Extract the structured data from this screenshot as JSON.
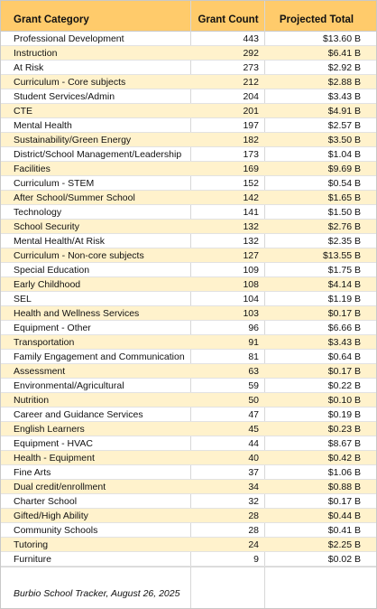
{
  "table": {
    "headers": {
      "category": "Grant Category",
      "count": "Grant Count",
      "total": "Projected Total"
    },
    "rows": [
      {
        "category": "Professional Development",
        "count": "443",
        "total": "$13.60 B"
      },
      {
        "category": "Instruction",
        "count": "292",
        "total": "$6.41 B"
      },
      {
        "category": "At Risk",
        "count": "273",
        "total": "$2.92 B"
      },
      {
        "category": "Curriculum - Core subjects",
        "count": "212",
        "total": "$2.88 B"
      },
      {
        "category": "Student Services/Admin",
        "count": "204",
        "total": "$3.43 B"
      },
      {
        "category": "CTE",
        "count": "201",
        "total": "$4.91 B"
      },
      {
        "category": "Mental Health",
        "count": "197",
        "total": "$2.57 B"
      },
      {
        "category": "Sustainability/Green Energy",
        "count": "182",
        "total": "$3.50 B"
      },
      {
        "category": "District/School Management/Leadership",
        "count": "173",
        "total": "$1.04 B"
      },
      {
        "category": "Facilities",
        "count": "169",
        "total": "$9.69 B"
      },
      {
        "category": "Curriculum - STEM",
        "count": "152",
        "total": "$0.54 B"
      },
      {
        "category": "After School/Summer School",
        "count": "142",
        "total": "$1.65 B"
      },
      {
        "category": "Technology",
        "count": "141",
        "total": "$1.50 B"
      },
      {
        "category": "School Security",
        "count": "132",
        "total": "$2.76 B"
      },
      {
        "category": "Mental Health/At Risk",
        "count": "132",
        "total": "$2.35 B"
      },
      {
        "category": "Curriculum - Non-core subjects",
        "count": "127",
        "total": "$13.55 B"
      },
      {
        "category": "Special Education",
        "count": "109",
        "total": "$1.75 B"
      },
      {
        "category": "Early Childhood",
        "count": "108",
        "total": "$4.14 B"
      },
      {
        "category": "SEL",
        "count": "104",
        "total": "$1.19 B"
      },
      {
        "category": "Health and Wellness Services",
        "count": "103",
        "total": "$0.17 B"
      },
      {
        "category": "Equipment - Other",
        "count": "96",
        "total": "$6.66 B"
      },
      {
        "category": "Transportation",
        "count": "91",
        "total": "$3.43 B"
      },
      {
        "category": "Family Engagement and Communication",
        "count": "81",
        "total": "$0.64 B"
      },
      {
        "category": "Assessment",
        "count": "63",
        "total": "$0.17 B"
      },
      {
        "category": "Environmental/Agricultural",
        "count": "59",
        "total": "$0.22 B"
      },
      {
        "category": "Nutrition",
        "count": "50",
        "total": "$0.10 B"
      },
      {
        "category": "Career and Guidance Services",
        "count": "47",
        "total": "$0.19 B"
      },
      {
        "category": "English Learners",
        "count": "45",
        "total": "$0.23 B"
      },
      {
        "category": "Equipment - HVAC",
        "count": "44",
        "total": "$8.67 B"
      },
      {
        "category": "Health - Equipment",
        "count": "40",
        "total": "$0.42 B"
      },
      {
        "category": "Fine Arts",
        "count": "37",
        "total": "$1.06 B"
      },
      {
        "category": "Dual credit/enrollment",
        "count": "34",
        "total": "$0.88 B"
      },
      {
        "category": "Charter School",
        "count": "32",
        "total": "$0.17 B"
      },
      {
        "category": "Gifted/High Ability",
        "count": "28",
        "total": "$0.44 B"
      },
      {
        "category": "Community Schools",
        "count": "28",
        "total": "$0.41 B"
      },
      {
        "category": "Tutoring",
        "count": "24",
        "total": "$2.25 B"
      },
      {
        "category": "Furniture",
        "count": "9",
        "total": "$0.02 B"
      }
    ]
  },
  "footer": {
    "source": "Burbio School Tracker, August 26, 2025"
  },
  "colors": {
    "header_bg": "#ffcb6b",
    "alt_row_bg": "#fff2cc"
  }
}
